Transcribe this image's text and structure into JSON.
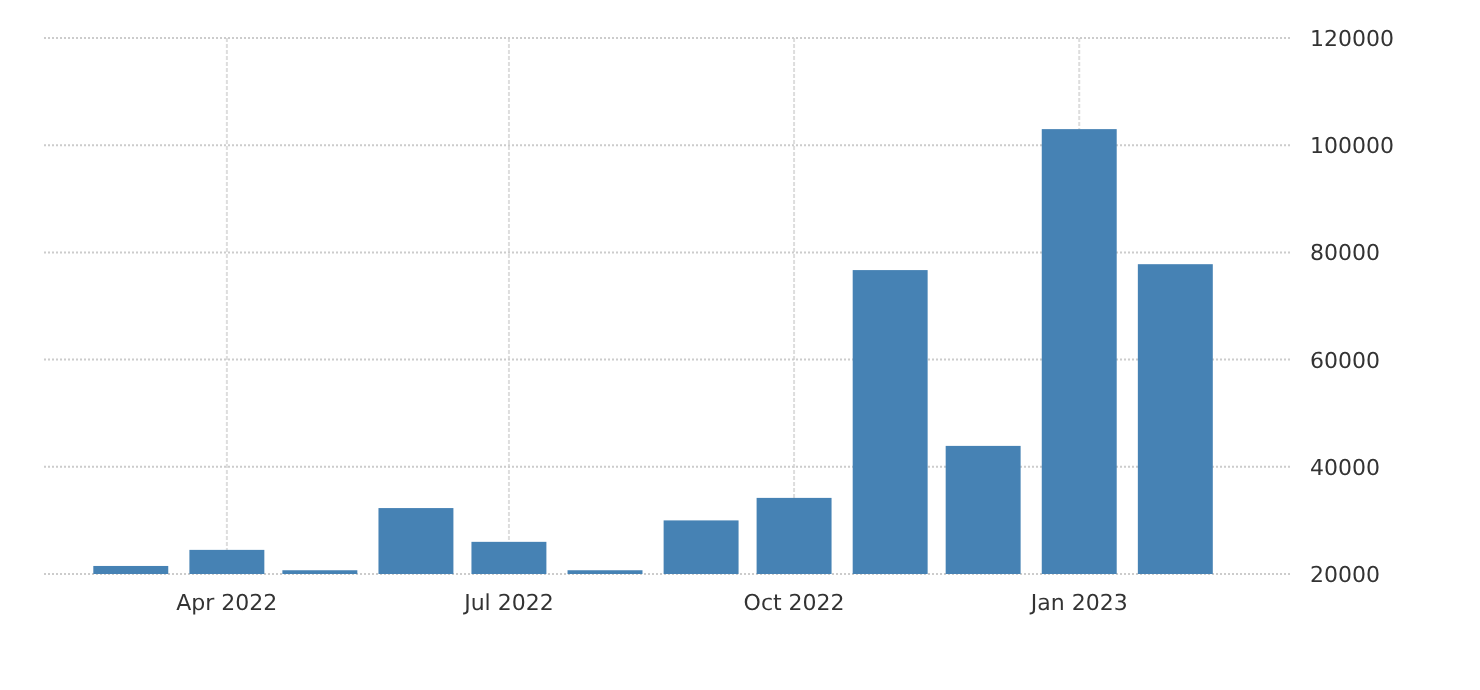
{
  "chart_data": {
    "type": "bar",
    "x": [
      "2022-03",
      "2022-04",
      "2022-05",
      "2022-06",
      "2022-07",
      "2022-08",
      "2022-09",
      "2022-10",
      "2022-11",
      "2022-12",
      "2023-01",
      "2023-02"
    ],
    "values": [
      21500,
      24500,
      20700,
      32300,
      26000,
      20700,
      30000,
      34200,
      76700,
      43900,
      103000,
      77800
    ],
    "color": "#4682b4",
    "xlim": [
      "2022-02-01",
      "2023-03-10"
    ],
    "xticks": [
      {
        "value": "2022-04",
        "label": "Apr 2022"
      },
      {
        "value": "2022-07",
        "label": "Jul 2022"
      },
      {
        "value": "2022-10",
        "label": "Oct 2022"
      },
      {
        "value": "2023-01",
        "label": "Jan 2023"
      }
    ],
    "ylim": [
      20000,
      120000
    ],
    "yticks": [
      20000,
      40000,
      60000,
      80000,
      100000,
      120000
    ],
    "grid": true
  }
}
